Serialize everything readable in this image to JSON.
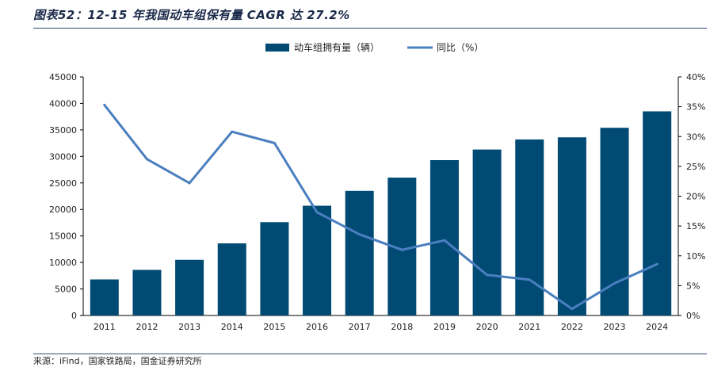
{
  "header": {
    "title": "图表52：12-15 年我国动车组保有量 CAGR 达 27.2%",
    "source": "来源：iFind，国家铁路局，国金证券研究所"
  },
  "colors": {
    "bar": "#004a74",
    "line": "#4a7fbf",
    "rule": "#2a4d76"
  },
  "chart_data": {
    "type": "bar",
    "categories": [
      "2011",
      "2012",
      "2013",
      "2014",
      "2015",
      "2016",
      "2017",
      "2018",
      "2019",
      "2020",
      "2021",
      "2022",
      "2023",
      "2024"
    ],
    "series": [
      {
        "name": "动车组拥有量（辆）",
        "type": "bar",
        "axis": "left",
        "values": [
          6800,
          8600,
          10500,
          13600,
          17600,
          20700,
          23500,
          26000,
          29300,
          31300,
          33200,
          33600,
          35400,
          38500
        ]
      },
      {
        "name": "同比（%）",
        "type": "line",
        "axis": "right",
        "values": [
          35.3,
          26.2,
          22.2,
          30.8,
          28.9,
          17.3,
          13.6,
          11.0,
          12.6,
          6.8,
          6.0,
          1.1,
          5.4,
          8.6
        ]
      }
    ],
    "yleft": {
      "lim": [
        0,
        45000
      ],
      "ticks": [
        "0",
        "5000",
        "10000",
        "15000",
        "20000",
        "25000",
        "30000",
        "35000",
        "40000",
        "45000"
      ]
    },
    "yright": {
      "lim": [
        0,
        40
      ],
      "ticks": [
        "0%",
        "5%",
        "10%",
        "15%",
        "20%",
        "25%",
        "30%",
        "35%",
        "40%"
      ]
    },
    "legend_position": "top-center",
    "grid": false
  }
}
